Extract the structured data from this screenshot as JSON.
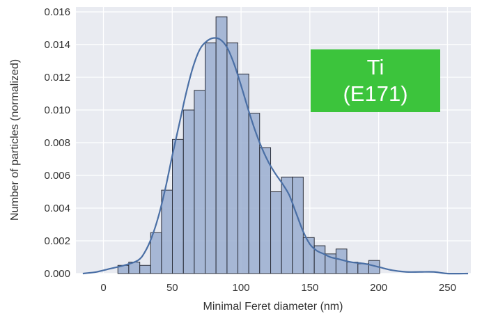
{
  "chart_data": {
    "type": "bar",
    "subtype": "histogram-with-kde",
    "xlabel": "Minimal Feret diameter (nm)",
    "ylabel": "Number of particles (normalized)",
    "xlim": [
      -20,
      267
    ],
    "ylim": [
      0,
      0.0163
    ],
    "x_ticks": [
      0,
      50,
      100,
      150,
      200,
      250
    ],
    "x_tick_labels": [
      "0",
      "50",
      "100",
      "150",
      "200",
      "250"
    ],
    "y_ticks": [
      0.0,
      0.002,
      0.004,
      0.006,
      0.008,
      0.01,
      0.012,
      0.014,
      0.016
    ],
    "y_tick_labels": [
      "0.000",
      "0.002",
      "0.004",
      "0.006",
      "0.008",
      "0.010",
      "0.012",
      "0.014",
      "0.016"
    ],
    "grid": true,
    "background_color": "#e9ebf1",
    "bar_color": "#9aaed0",
    "bar_edge_color": "#2b2f3a",
    "kde_color": "#4a6fa5",
    "bins": [
      {
        "x0": 10.5,
        "x1": 18.4,
        "value": 0.0005
      },
      {
        "x0": 18.4,
        "x1": 26.4,
        "value": 0.0007
      },
      {
        "x0": 26.4,
        "x1": 34.3,
        "value": 0.0005
      },
      {
        "x0": 34.3,
        "x1": 42.2,
        "value": 0.0025
      },
      {
        "x0": 42.2,
        "x1": 50.1,
        "value": 0.0051
      },
      {
        "x0": 50.1,
        "x1": 58.1,
        "value": 0.0082
      },
      {
        "x0": 58.1,
        "x1": 66.0,
        "value": 0.01
      },
      {
        "x0": 66.0,
        "x1": 73.9,
        "value": 0.0112
      },
      {
        "x0": 73.9,
        "x1": 81.8,
        "value": 0.0141
      },
      {
        "x0": 81.8,
        "x1": 89.8,
        "value": 0.0157
      },
      {
        "x0": 89.8,
        "x1": 97.7,
        "value": 0.0141
      },
      {
        "x0": 97.7,
        "x1": 105.6,
        "value": 0.0122
      },
      {
        "x0": 105.6,
        "x1": 113.5,
        "value": 0.0098
      },
      {
        "x0": 113.5,
        "x1": 121.5,
        "value": 0.0077
      },
      {
        "x0": 121.5,
        "x1": 129.4,
        "value": 0.005
      },
      {
        "x0": 129.4,
        "x1": 137.3,
        "value": 0.0059
      },
      {
        "x0": 137.3,
        "x1": 145.2,
        "value": 0.0059
      },
      {
        "x0": 145.2,
        "x1": 153.2,
        "value": 0.0022
      },
      {
        "x0": 153.2,
        "x1": 161.1,
        "value": 0.0017
      },
      {
        "x0": 161.1,
        "x1": 169.0,
        "value": 0.0012
      },
      {
        "x0": 169.0,
        "x1": 176.9,
        "value": 0.0015
      },
      {
        "x0": 176.9,
        "x1": 184.9,
        "value": 0.0007
      },
      {
        "x0": 184.9,
        "x1": 192.8,
        "value": 0.0006
      },
      {
        "x0": 192.8,
        "x1": 200.7,
        "value": 0.0008
      }
    ],
    "kde": {
      "x": [
        -15,
        -5,
        5,
        15,
        25,
        30,
        35,
        40,
        45,
        50,
        55,
        60,
        65,
        70,
        75,
        80,
        85,
        90,
        95,
        100,
        105,
        110,
        115,
        120,
        125,
        130,
        135,
        140,
        145,
        150,
        155,
        160,
        165,
        170,
        180,
        190,
        200,
        210,
        220,
        230,
        240,
        250,
        265
      ],
      "y": [
        0.0,
        0.0001,
        0.0003,
        0.0005,
        0.0008,
        0.0013,
        0.0022,
        0.0035,
        0.0052,
        0.0072,
        0.0091,
        0.011,
        0.0126,
        0.0137,
        0.0142,
        0.0144,
        0.0143,
        0.0138,
        0.0128,
        0.0115,
        0.0101,
        0.0088,
        0.0077,
        0.0068,
        0.0061,
        0.0055,
        0.0048,
        0.0037,
        0.0026,
        0.0018,
        0.0014,
        0.0012,
        0.001,
        0.0009,
        0.0007,
        0.0006,
        0.0004,
        0.0002,
        0.0001,
        0.0001,
        0.0001,
        0.0,
        0.0
      ]
    }
  },
  "annotation": {
    "line1": "Ti",
    "line2": "(E171)",
    "color": "#3cc43c"
  }
}
